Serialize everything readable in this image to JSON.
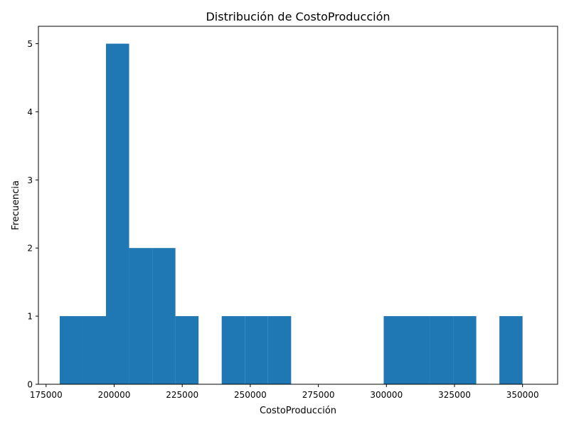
{
  "chart_data": {
    "type": "bar",
    "title": "Distribución de CostoProducción",
    "xlabel": "CostoProducción",
    "ylabel": "Frecuencia",
    "bar_color": "#1f77b4",
    "xlim": [
      175000,
      350000
    ],
    "ylim": [
      0,
      5
    ],
    "x_ticks": [
      175000,
      200000,
      225000,
      250000,
      275000,
      300000,
      325000,
      350000
    ],
    "y_ticks": [
      0,
      1,
      2,
      3,
      4,
      5
    ],
    "bins": [
      {
        "x0": 180000,
        "x1": 188500,
        "count": 1
      },
      {
        "x0": 188500,
        "x1": 197000,
        "count": 1
      },
      {
        "x0": 197000,
        "x1": 205500,
        "count": 5
      },
      {
        "x0": 205500,
        "x1": 214000,
        "count": 2
      },
      {
        "x0": 214000,
        "x1": 222500,
        "count": 2
      },
      {
        "x0": 222500,
        "x1": 231000,
        "count": 1
      },
      {
        "x0": 231000,
        "x1": 239500,
        "count": 0
      },
      {
        "x0": 239500,
        "x1": 248000,
        "count": 1
      },
      {
        "x0": 248000,
        "x1": 256500,
        "count": 1
      },
      {
        "x0": 256500,
        "x1": 265000,
        "count": 1
      },
      {
        "x0": 265000,
        "x1": 273500,
        "count": 0
      },
      {
        "x0": 273500,
        "x1": 282000,
        "count": 0
      },
      {
        "x0": 282000,
        "x1": 290500,
        "count": 0
      },
      {
        "x0": 290500,
        "x1": 299000,
        "count": 0
      },
      {
        "x0": 299000,
        "x1": 307500,
        "count": 1
      },
      {
        "x0": 307500,
        "x1": 316000,
        "count": 1
      },
      {
        "x0": 316000,
        "x1": 324500,
        "count": 1
      },
      {
        "x0": 324500,
        "x1": 333000,
        "count": 1
      },
      {
        "x0": 333000,
        "x1": 341500,
        "count": 0
      },
      {
        "x0": 341500,
        "x1": 350000,
        "count": 1
      }
    ]
  }
}
